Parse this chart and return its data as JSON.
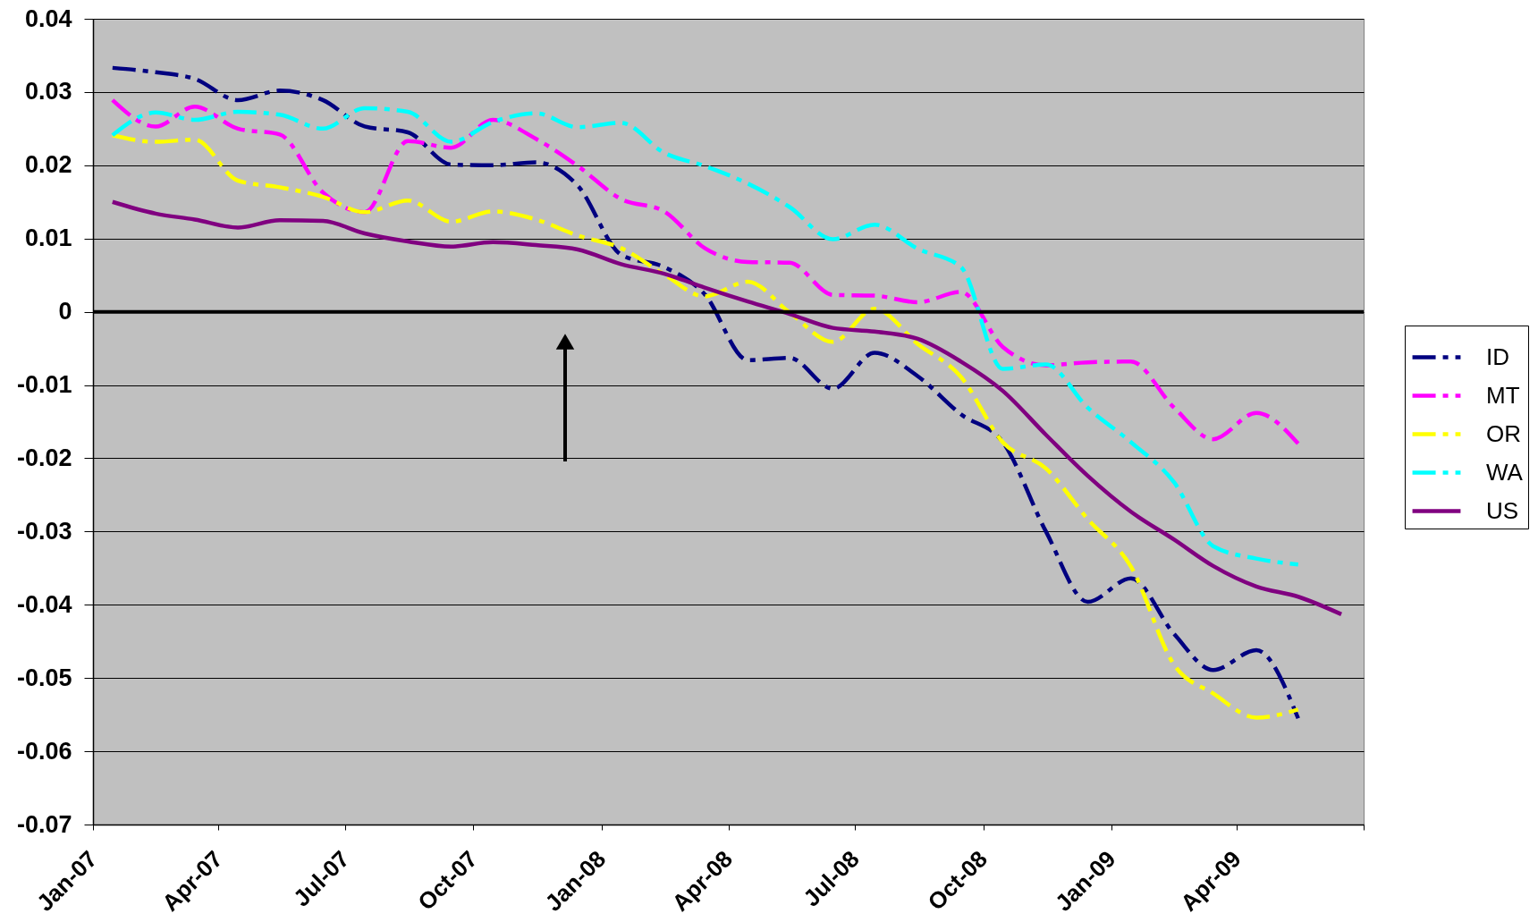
{
  "chart_data": {
    "type": "line",
    "x": [
      "2007-01-15",
      "2007-02-15",
      "2007-03-15",
      "2007-04-15",
      "2007-05-15",
      "2007-06-15",
      "2007-07-15",
      "2007-08-15",
      "2007-09-15",
      "2007-10-15",
      "2007-11-15",
      "2007-12-15",
      "2008-01-15",
      "2008-02-15",
      "2008-03-15",
      "2008-04-15",
      "2008-05-15",
      "2008-06-15",
      "2008-07-15",
      "2008-08-15",
      "2008-09-15",
      "2008-10-15",
      "2008-11-15",
      "2008-12-15",
      "2009-01-15",
      "2009-02-15",
      "2009-03-15",
      "2009-04-15",
      "2009-05-15",
      "2009-06-15"
    ],
    "xlim": [
      "2007-01-01",
      "2009-07-01"
    ],
    "xticks": [
      {
        "value": "2007-01-01",
        "label": "Jan-07"
      },
      {
        "value": "2007-04-01",
        "label": "Apr-07"
      },
      {
        "value": "2007-07-01",
        "label": "Jul-07"
      },
      {
        "value": "2007-10-01",
        "label": "Oct-07"
      },
      {
        "value": "2008-01-01",
        "label": "Jan-08"
      },
      {
        "value": "2008-04-01",
        "label": "Apr-08"
      },
      {
        "value": "2008-07-01",
        "label": "Jul-08"
      },
      {
        "value": "2008-10-01",
        "label": "Oct-08"
      },
      {
        "value": "2009-01-01",
        "label": "Jan-09"
      },
      {
        "value": "2009-04-01",
        "label": "Apr-09"
      },
      {
        "value": "2009-07-01",
        "label": null
      }
    ],
    "ylim": [
      -0.07,
      0.04
    ],
    "yticks": [
      -0.07,
      -0.06,
      -0.05,
      -0.04,
      -0.03,
      -0.02,
      -0.01,
      0,
      0.01,
      0.02,
      0.03,
      0.04
    ],
    "grid": "y",
    "legend": "right",
    "series": [
      {
        "name": "ID",
        "color": "#000080",
        "line_style": "dashed",
        "values": [
          0.0333,
          0.0327,
          0.0318,
          0.0289,
          0.0302,
          0.0289,
          0.0253,
          0.0245,
          0.0201,
          0.02,
          0.0204,
          0.0172,
          0.0078,
          0.0061,
          0.0024,
          -0.0066,
          -0.0063,
          -0.0105,
          -0.0056,
          -0.0088,
          -0.014,
          -0.0178,
          -0.03,
          -0.0396,
          -0.0364,
          -0.044,
          -0.0489,
          -0.0462,
          -0.0555,
          null
        ]
      },
      {
        "name": "MT",
        "color": "#ff00ff",
        "line_style": "dashed",
        "values": [
          0.0289,
          0.0253,
          0.028,
          0.025,
          0.0242,
          0.0163,
          0.0136,
          0.0233,
          0.0224,
          0.0262,
          0.0236,
          0.0199,
          0.0154,
          0.0137,
          0.0087,
          0.0068,
          0.0067,
          0.0023,
          0.0022,
          0.0013,
          0.0027,
          -0.0048,
          -0.0073,
          -0.0069,
          -0.0068,
          -0.0131,
          -0.0174,
          -0.0138,
          -0.018,
          null
        ]
      },
      {
        "name": "OR",
        "color": "#ffff00",
        "line_style": "dashed",
        "values": [
          0.0241,
          0.0232,
          0.0235,
          0.0179,
          0.017,
          0.0157,
          0.0136,
          0.0152,
          0.0123,
          0.0137,
          0.0126,
          0.0104,
          0.0087,
          0.0051,
          0.0021,
          0.0041,
          -0.0001,
          -0.0041,
          0.0004,
          -0.0044,
          -0.0089,
          -0.0178,
          -0.0214,
          -0.0283,
          -0.0348,
          -0.0482,
          -0.0521,
          -0.0554,
          -0.0543,
          null
        ]
      },
      {
        "name": "WA",
        "color": "#00ffff",
        "line_style": "dashed",
        "values": [
          0.0241,
          0.0272,
          0.0262,
          0.0273,
          0.0269,
          0.025,
          0.0278,
          0.0273,
          0.0232,
          0.0259,
          0.0271,
          0.0252,
          0.0258,
          0.0217,
          0.0199,
          0.0175,
          0.0143,
          0.0099,
          0.0119,
          0.0086,
          0.0061,
          -0.0078,
          -0.0072,
          -0.0131,
          -0.0178,
          -0.0233,
          -0.032,
          -0.0337,
          -0.0345,
          null
        ]
      },
      {
        "name": "US",
        "color": "#800080",
        "line_style": "solid",
        "values": [
          0.015,
          0.0134,
          0.0126,
          0.0115,
          0.0125,
          0.0124,
          0.0107,
          0.0096,
          0.0089,
          0.0095,
          0.0091,
          0.0085,
          0.0065,
          0.0052,
          0.0033,
          0.0014,
          -0.0003,
          -0.0022,
          -0.0027,
          -0.0037,
          -0.0068,
          -0.0108,
          -0.0168,
          -0.0224,
          -0.0273,
          -0.0311,
          -0.0347,
          -0.0375,
          -0.0389,
          -0.0413
        ]
      }
    ],
    "ref_lines": [
      {
        "axis": "y",
        "value": 0,
        "color": "#000000"
      }
    ]
  }
}
